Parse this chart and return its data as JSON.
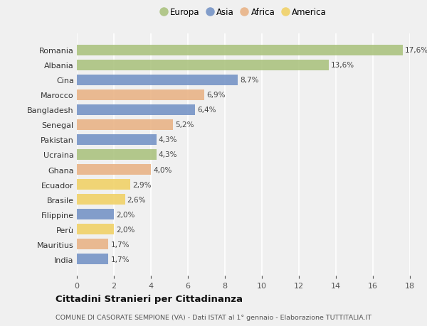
{
  "categories": [
    "Romania",
    "Albania",
    "Cina",
    "Marocco",
    "Bangladesh",
    "Senegal",
    "Pakistan",
    "Ucraina",
    "Ghana",
    "Ecuador",
    "Brasile",
    "Filippine",
    "Perù",
    "Mauritius",
    "India"
  ],
  "values": [
    17.6,
    13.6,
    8.7,
    6.9,
    6.4,
    5.2,
    4.3,
    4.3,
    4.0,
    2.9,
    2.6,
    2.0,
    2.0,
    1.7,
    1.7
  ],
  "labels": [
    "17,6%",
    "13,6%",
    "8,7%",
    "6,9%",
    "6,4%",
    "5,2%",
    "4,3%",
    "4,3%",
    "4,0%",
    "2,9%",
    "2,6%",
    "2,0%",
    "2,0%",
    "1,7%",
    "1,7%"
  ],
  "continents": [
    "Europa",
    "Europa",
    "Asia",
    "Africa",
    "Asia",
    "Africa",
    "Asia",
    "Europa",
    "Africa",
    "America",
    "America",
    "Asia",
    "America",
    "Africa",
    "Asia"
  ],
  "colors": {
    "Europa": "#a8c07a",
    "Asia": "#6f8fc4",
    "Africa": "#e8b080",
    "America": "#f0d060"
  },
  "legend_order": [
    "Europa",
    "Asia",
    "Africa",
    "America"
  ],
  "xlim": [
    0,
    18
  ],
  "xticks": [
    0,
    2,
    4,
    6,
    8,
    10,
    12,
    14,
    16,
    18
  ],
  "title": "Cittadini Stranieri per Cittadinanza",
  "subtitle": "COMUNE DI CASORATE SEMPIONE (VA) - Dati ISTAT al 1° gennaio - Elaborazione TUTTITALIA.IT",
  "background_color": "#f0f0f0",
  "grid_color": "#ffffff",
  "bar_height": 0.7,
  "label_fontsize": 7.5,
  "tick_fontsize": 8,
  "legend_fontsize": 8.5
}
